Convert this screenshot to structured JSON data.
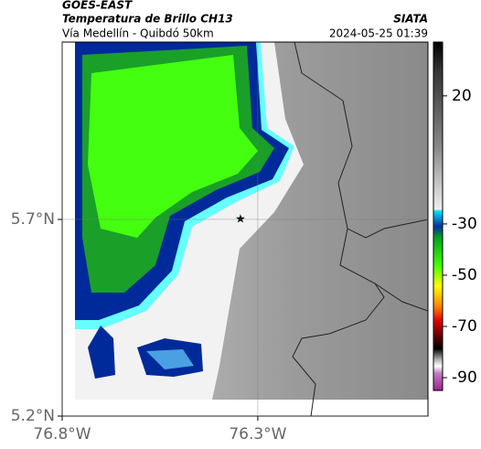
{
  "header": {
    "source": "GOES-EAST",
    "product": "Temperatura de Brillo CH13",
    "org": "SIATA",
    "route": "Vía Medellín - Quibdó 50km",
    "datetime": "2024-05-25 01:39"
  },
  "map": {
    "xlim": [
      -76.8,
      -75.865
    ],
    "ylim": [
      5.2,
      6.151
    ],
    "xticks": [
      {
        "value": -76.8,
        "label": "76.8°W"
      },
      {
        "value": -76.3,
        "label": "76.3°W"
      }
    ],
    "yticks": [
      {
        "value": 5.7,
        "label": "5.7°N"
      },
      {
        "value": 5.2,
        "label": "5.2°N"
      }
    ],
    "grid": true
  },
  "colorbar": {
    "clim": [
      41,
      -95
    ],
    "ticks": [
      20,
      -30,
      -50,
      -70,
      -90
    ]
  }
}
